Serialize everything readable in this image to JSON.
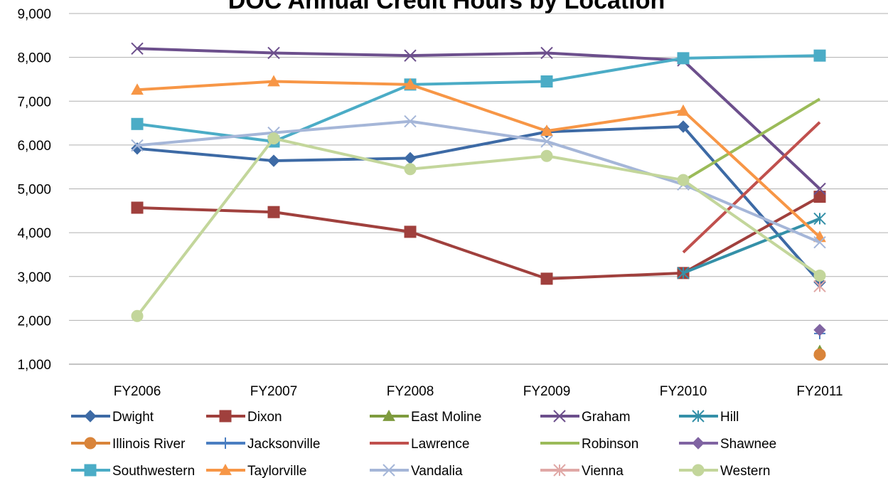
{
  "chart_data": {
    "type": "line",
    "title": "DOC Annual Credit Hours by Location",
    "categories": [
      "FY2006",
      "FY2007",
      "FY2008",
      "FY2009",
      "FY2010",
      "FY2011"
    ],
    "ylim": [
      1000,
      9000
    ],
    "yticks": [
      {
        "value": 1000,
        "label": "1,000"
      },
      {
        "value": 2000,
        "label": "2,000"
      },
      {
        "value": 3000,
        "label": "3,000"
      },
      {
        "value": 4000,
        "label": "4,000"
      },
      {
        "value": 5000,
        "label": "5,000"
      },
      {
        "value": 6000,
        "label": "6,000"
      },
      {
        "value": 7000,
        "label": "7,000"
      },
      {
        "value": 8000,
        "label": "8,000"
      },
      {
        "value": 9000,
        "label": "9,000"
      }
    ],
    "grid": true,
    "legend": "bottom",
    "series": [
      {
        "name": "Dwight",
        "color": "#3d6aa5",
        "marker": "diamond",
        "values": [
          5920,
          5640,
          5700,
          6300,
          6420,
          2870
        ]
      },
      {
        "name": "Dixon",
        "color": "#a0403d",
        "marker": "square",
        "values": [
          4570,
          4470,
          4020,
          2950,
          3080,
          4820
        ]
      },
      {
        "name": "East Moline",
        "color": "#7e9b3e",
        "marker": "triangle",
        "values": [
          null,
          null,
          null,
          null,
          null,
          1300
        ]
      },
      {
        "name": "Graham",
        "color": "#6c4f8c",
        "marker": "x",
        "values": [
          8200,
          8100,
          8040,
          8100,
          7930,
          5000
        ]
      },
      {
        "name": "Hill",
        "color": "#3490a8",
        "marker": "asterisk",
        "values": [
          null,
          null,
          null,
          null,
          3080,
          4320
        ]
      },
      {
        "name": "Illinois River",
        "color": "#d9843a",
        "marker": "circle",
        "values": [
          null,
          null,
          null,
          null,
          null,
          1220
        ]
      },
      {
        "name": "Jacksonville",
        "color": "#4a7ec1",
        "marker": "plus",
        "values": [
          null,
          null,
          null,
          null,
          null,
          1700
        ]
      },
      {
        "name": "Lawrence",
        "color": "#c0504d",
        "marker": "none",
        "values": [
          null,
          null,
          null,
          null,
          3550,
          6520
        ]
      },
      {
        "name": "Robinson",
        "color": "#9bbb59",
        "marker": "none",
        "values": [
          null,
          null,
          null,
          null,
          5180,
          7050
        ]
      },
      {
        "name": "Shawnee",
        "color": "#8064a2",
        "marker": "diamond",
        "values": [
          null,
          null,
          null,
          null,
          null,
          1780
        ]
      },
      {
        "name": "Southwestern",
        "color": "#4bacc6",
        "marker": "square",
        "values": [
          6480,
          6080,
          7380,
          7450,
          7980,
          8040
        ]
      },
      {
        "name": "Taylorville",
        "color": "#f79646",
        "marker": "triangle",
        "values": [
          7260,
          7450,
          7380,
          6320,
          6780,
          3900
        ]
      },
      {
        "name": "Vandalia",
        "color": "#a5b6d8",
        "marker": "x",
        "values": [
          5990,
          6280,
          6540,
          6080,
          5100,
          3780
        ]
      },
      {
        "name": "Vienna",
        "color": "#e0a8a6",
        "marker": "asterisk",
        "values": [
          null,
          null,
          null,
          null,
          null,
          2780
        ]
      },
      {
        "name": "Western",
        "color": "#c3d69b",
        "marker": "circle",
        "values": [
          2100,
          6150,
          5450,
          5750,
          5200,
          3020
        ]
      }
    ]
  }
}
